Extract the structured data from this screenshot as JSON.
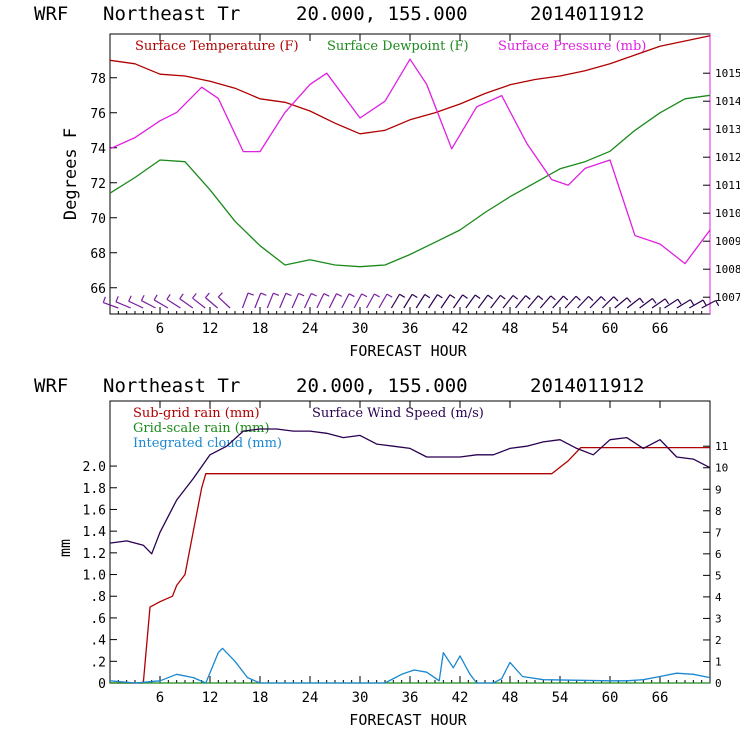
{
  "charts": [
    {
      "header": {
        "model": "WRF",
        "location": "Northeast Tr",
        "coords": "20.000, 155.000",
        "run": "2014011912"
      },
      "legend": [
        {
          "label": "Surface Temperature (F)",
          "color": "#b00000"
        },
        {
          "label": "Surface Dewpoint (F)",
          "color": "#1a8a1a"
        },
        {
          "label": "Surface Pressure (mb)",
          "color": "#e020e0"
        }
      ],
      "xlabel": "FORECAST HOUR",
      "ylabel": "Degrees F"
    },
    {
      "header": {
        "model": "WRF",
        "location": "Northeast Tr",
        "coords": "20.000, 155.000",
        "run": "2014011912"
      },
      "legend": [
        {
          "label": "Sub-grid rain (mm)",
          "color": "#b00000"
        },
        {
          "label": "Surface Wind Speed (m/s)",
          "color": "#2a0050"
        },
        {
          "label": "Grid-scale rain (mm)",
          "color": "#1a8a1a"
        },
        {
          "label": "Integrated cloud (mm)",
          "color": "#1a88d0"
        }
      ],
      "xlabel": "FORECAST HOUR",
      "ylabel": "mm"
    }
  ],
  "chart_data": [
    {
      "type": "line",
      "x_ticks": [
        6,
        12,
        18,
        24,
        30,
        36,
        42,
        48,
        54,
        60,
        66
      ],
      "xlim": [
        0,
        72
      ],
      "y_left": {
        "ticks": [
          66,
          68,
          70,
          72,
          74,
          76,
          78
        ],
        "lim": [
          64.5,
          80.5
        ]
      },
      "y_right": {
        "ticks": [
          1007,
          1008,
          1009,
          1010,
          1011,
          1012,
          1013,
          1014,
          1015
        ],
        "lim": [
          1006.4,
          1016.4
        ]
      },
      "series": [
        {
          "name": "Surface Temperature (F)",
          "axis": "left",
          "color": "#b00000",
          "x": [
            0,
            3,
            6,
            9,
            12,
            15,
            18,
            21,
            24,
            27,
            30,
            33,
            36,
            39,
            42,
            45,
            48,
            51,
            54,
            57,
            60,
            63,
            66,
            69,
            72
          ],
          "y": [
            79.0,
            78.8,
            78.2,
            78.1,
            77.8,
            77.4,
            76.8,
            76.6,
            76.1,
            75.4,
            74.8,
            75.0,
            75.6,
            76.0,
            76.5,
            77.1,
            77.6,
            77.9,
            78.1,
            78.4,
            78.8,
            79.3,
            79.8,
            80.1,
            80.4
          ]
        },
        {
          "name": "Surface Dewpoint (F)",
          "axis": "left",
          "color": "#1a8a1a",
          "x": [
            0,
            3,
            6,
            9,
            12,
            15,
            18,
            21,
            24,
            27,
            30,
            33,
            36,
            39,
            42,
            45,
            48,
            51,
            54,
            57,
            60,
            63,
            66,
            69,
            72
          ],
          "y": [
            71.4,
            72.3,
            73.3,
            73.2,
            71.6,
            69.8,
            68.4,
            67.3,
            67.6,
            67.3,
            67.2,
            67.3,
            67.9,
            68.6,
            69.3,
            70.3,
            71.2,
            72.0,
            72.8,
            73.2,
            73.8,
            75.0,
            76.0,
            76.8,
            77.0
          ]
        },
        {
          "name": "Surface Pressure (mb)",
          "axis": "right",
          "color": "#e020e0",
          "x": [
            0,
            3,
            6,
            8,
            11,
            13,
            16,
            18,
            21,
            24,
            26,
            30,
            33,
            36,
            38,
            41,
            44,
            47,
            50,
            53,
            55,
            57,
            60,
            63,
            66,
            69,
            72
          ],
          "y": [
            1012.3,
            1012.7,
            1013.3,
            1013.6,
            1014.5,
            1014.1,
            1012.2,
            1012.2,
            1013.6,
            1014.6,
            1015.0,
            1013.4,
            1014.0,
            1015.5,
            1014.6,
            1012.3,
            1013.8,
            1014.2,
            1012.5,
            1011.2,
            1011.0,
            1011.6,
            1011.9,
            1009.2,
            1008.9,
            1008.2,
            1009.4
          ]
        }
      ],
      "wind_barbs": {
        "x_start": 1,
        "x_end": 71,
        "count": 48
      }
    },
    {
      "type": "line",
      "x_ticks": [
        6,
        12,
        18,
        24,
        30,
        36,
        42,
        48,
        54,
        60,
        66
      ],
      "xlim": [
        0,
        72
      ],
      "y_left": {
        "ticks": [
          "0",
          ".2",
          ".4",
          ".6",
          ".8",
          "1.0",
          "1.2",
          "1.4",
          "1.6",
          "1.8",
          "2.0"
        ],
        "lim": [
          0,
          2.6
        ]
      },
      "y_right": {
        "ticks": [
          0,
          1,
          2,
          3,
          4,
          5,
          6,
          7,
          8,
          9,
          10,
          11
        ],
        "lim": [
          0,
          13.1
        ]
      },
      "series": [
        {
          "name": "Sub-grid rain (mm)",
          "axis": "left",
          "color": "#b00000",
          "x": [
            0,
            4,
            4.8,
            6,
            7.5,
            8,
            9,
            10,
            11,
            11.5,
            30,
            45,
            53,
            55,
            56.5,
            72
          ],
          "y": [
            0,
            0,
            0.7,
            0.75,
            0.8,
            0.9,
            1.0,
            1.4,
            1.8,
            1.93,
            1.93,
            1.93,
            1.93,
            2.05,
            2.17,
            2.17
          ]
        },
        {
          "name": "Surface Wind Speed (m/s)",
          "axis": "right",
          "color": "#2a0050",
          "x": [
            0,
            2,
            4,
            5,
            6,
            8,
            10,
            12,
            14,
            16,
            18,
            20,
            22,
            24,
            26,
            28,
            30,
            32,
            34,
            36,
            38,
            40,
            42,
            44,
            46,
            48,
            50,
            52,
            54,
            56,
            58,
            60,
            62,
            64,
            66,
            68,
            70,
            72
          ],
          "y": [
            6.5,
            6.6,
            6.4,
            6.0,
            7.0,
            8.5,
            9.5,
            10.6,
            11.0,
            11.7,
            11.8,
            11.8,
            11.7,
            11.7,
            11.6,
            11.4,
            11.5,
            11.1,
            11.0,
            10.9,
            10.5,
            10.5,
            10.5,
            10.6,
            10.6,
            10.9,
            11.0,
            11.2,
            11.3,
            10.9,
            10.6,
            11.3,
            11.4,
            10.9,
            11.3,
            10.5,
            10.4,
            10.0
          ]
        },
        {
          "name": "Grid-scale rain (mm)",
          "axis": "left",
          "color": "#1a8a1a",
          "x": [
            0,
            72
          ],
          "y": [
            0,
            0
          ]
        },
        {
          "name": "Integrated cloud (mm)",
          "axis": "left",
          "color": "#1a88d0",
          "x": [
            0,
            3,
            6,
            8,
            10,
            11.5,
            13,
            13.5,
            15,
            16.5,
            18,
            22,
            28,
            33,
            35,
            36.5,
            38,
            39.5,
            40,
            41.2,
            42,
            43.2,
            44,
            46,
            47,
            48,
            49.5,
            52,
            60,
            62,
            64,
            66,
            68,
            70,
            72
          ],
          "y": [
            0.02,
            0.0,
            0.02,
            0.08,
            0.05,
            0.0,
            0.28,
            0.32,
            0.2,
            0.05,
            0.0,
            0.0,
            0.0,
            0.0,
            0.08,
            0.12,
            0.1,
            0.02,
            0.28,
            0.14,
            0.25,
            0.08,
            0.0,
            0.0,
            0.04,
            0.19,
            0.06,
            0.03,
            0.02,
            0.02,
            0.03,
            0.06,
            0.09,
            0.08,
            0.05
          ]
        }
      ]
    }
  ]
}
